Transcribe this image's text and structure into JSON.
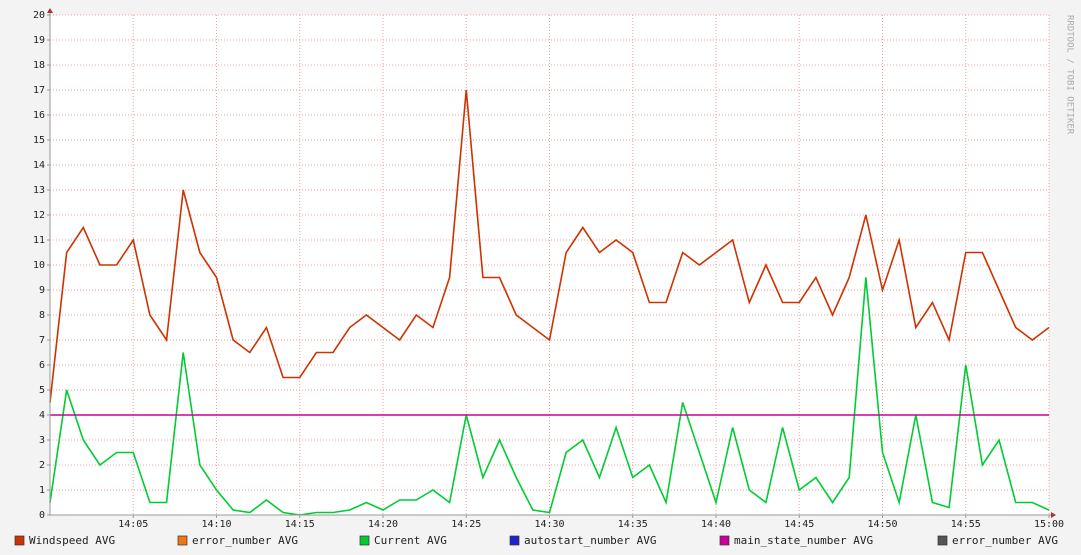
{
  "chart_data": {
    "type": "line",
    "watermark": "RRDTOOL / TOBI OETIKER",
    "x": [
      0,
      1,
      2,
      3,
      4,
      5,
      6,
      7,
      8,
      9,
      10,
      11,
      12,
      13,
      14,
      15,
      16,
      17,
      18,
      19,
      20,
      21,
      22,
      23,
      24,
      25,
      26,
      27,
      28,
      29,
      30,
      31,
      32,
      33,
      34,
      35,
      36,
      37,
      38,
      39,
      40,
      41,
      42,
      43,
      44,
      45,
      46,
      47,
      48,
      49,
      50,
      51,
      52,
      53,
      54,
      55,
      56,
      57,
      58,
      59,
      60
    ],
    "xlim": [
      0,
      60
    ],
    "xticks": [
      {
        "value": 5,
        "label": "14:05"
      },
      {
        "value": 10,
        "label": "14:10"
      },
      {
        "value": 15,
        "label": "14:15"
      },
      {
        "value": 20,
        "label": "14:20"
      },
      {
        "value": 25,
        "label": "14:25"
      },
      {
        "value": 30,
        "label": "14:30"
      },
      {
        "value": 35,
        "label": "14:35"
      },
      {
        "value": 40,
        "label": "14:40"
      },
      {
        "value": 45,
        "label": "14:45"
      },
      {
        "value": 50,
        "label": "14:50"
      },
      {
        "value": 55,
        "label": "14:55"
      },
      {
        "value": 60,
        "label": "15:00"
      }
    ],
    "ylim": [
      0,
      20
    ],
    "yticks": [
      0,
      1,
      2,
      3,
      4,
      5,
      6,
      7,
      8,
      9,
      10,
      11,
      12,
      13,
      14,
      15,
      16,
      17,
      18,
      19,
      20
    ],
    "grid": true,
    "series": [
      {
        "name": "Windspeed AVG",
        "color": "#cc3300",
        "values": [
          4.5,
          10.5,
          11.5,
          10,
          10,
          11,
          8,
          7,
          13,
          10.5,
          9.5,
          7,
          6.5,
          7.5,
          5.5,
          5.5,
          6.5,
          6.5,
          7.5,
          8,
          7.5,
          7,
          8,
          7.5,
          9.5,
          17,
          9.5,
          9.5,
          8,
          7.5,
          7,
          10.5,
          11.5,
          10.5,
          11,
          10.5,
          8.5,
          8.5,
          10.5,
          10,
          10.5,
          11,
          8.5,
          10,
          8.5,
          8.5,
          9.5,
          8,
          9.5,
          12,
          9,
          11,
          7.5,
          8.5,
          7,
          10.5,
          10.5,
          9,
          7.5,
          7,
          7.5
        ]
      },
      {
        "name": "error_number AVG",
        "color": "#ee7711",
        "values": [
          null,
          null,
          null,
          null,
          null,
          null,
          null,
          null,
          null,
          null,
          null,
          null,
          null,
          null,
          null,
          null,
          null,
          null,
          null,
          null,
          null,
          null,
          null,
          null,
          null,
          null,
          null,
          null,
          null,
          null,
          null,
          null,
          null,
          null,
          null,
          null,
          null,
          null,
          null,
          null,
          null,
          null,
          null,
          null,
          null,
          null,
          null,
          null,
          null,
          null,
          null,
          null,
          null,
          null,
          null,
          null,
          null,
          null,
          null,
          null,
          null
        ]
      },
      {
        "name": "Current AVG",
        "color": "#00cc33",
        "values": [
          0.5,
          5,
          3,
          2,
          2.5,
          2.5,
          0.5,
          0.5,
          6.5,
          2,
          1,
          0.2,
          0.1,
          0.6,
          0.1,
          0,
          0.1,
          0.1,
          0.2,
          0.5,
          0.2,
          0.6,
          0.6,
          1,
          0.5,
          4,
          1.5,
          3,
          1.5,
          0.2,
          0.1,
          2.5,
          3,
          1.5,
          3.5,
          1.5,
          2,
          0.5,
          4.5,
          2.5,
          0.5,
          3.5,
          1,
          0.5,
          3.5,
          1,
          1.5,
          0.5,
          1.5,
          9.5,
          2.5,
          0.5,
          4,
          0.5,
          0.3,
          6,
          2,
          3,
          0.5,
          0.5,
          0.2
        ]
      },
      {
        "name": "autostart_number AVG",
        "color": "#2222cc",
        "values": [
          null,
          null,
          null,
          null,
          null,
          null,
          null,
          null,
          null,
          null,
          null,
          null,
          null,
          null,
          null,
          null,
          null,
          null,
          null,
          null,
          null,
          null,
          null,
          null,
          null,
          null,
          null,
          null,
          null,
          null,
          null,
          null,
          null,
          null,
          null,
          null,
          null,
          null,
          null,
          null,
          null,
          null,
          null,
          null,
          null,
          null,
          null,
          null,
          null,
          null,
          null,
          null,
          null,
          null,
          null,
          null,
          null,
          null,
          null,
          null,
          null
        ]
      },
      {
        "name": "main_state_number AVG",
        "color": "#cc0099",
        "values": [
          4,
          4,
          4,
          4,
          4,
          4,
          4,
          4,
          4,
          4,
          4,
          4,
          4,
          4,
          4,
          4,
          4,
          4,
          4,
          4,
          4,
          4,
          4,
          4,
          4,
          4,
          4,
          4,
          4,
          4,
          4,
          4,
          4,
          4,
          4,
          4,
          4,
          4,
          4,
          4,
          4,
          4,
          4,
          4,
          4,
          4,
          4,
          4,
          4,
          4,
          4,
          4,
          4,
          4,
          4,
          4,
          4,
          4,
          4,
          4,
          4
        ]
      },
      {
        "name": "error_number AVG",
        "color": "#555555",
        "values": [
          null,
          null,
          null,
          null,
          null,
          null,
          null,
          null,
          null,
          null,
          null,
          null,
          null,
          null,
          null,
          null,
          null,
          null,
          null,
          null,
          null,
          null,
          null,
          null,
          null,
          null,
          null,
          null,
          null,
          null,
          null,
          null,
          null,
          null,
          null,
          null,
          null,
          null,
          null,
          null,
          null,
          null,
          null,
          null,
          null,
          null,
          null,
          null,
          null,
          null,
          null,
          null,
          null,
          null,
          null,
          null,
          null,
          null,
          null,
          null,
          null
        ]
      }
    ]
  }
}
